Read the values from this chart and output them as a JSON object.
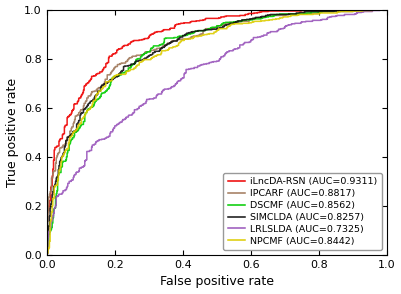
{
  "title": "",
  "xlabel": "False positive rate",
  "ylabel": "True positive rate",
  "methods": [
    {
      "label": "iLncDA-RSN (AUC=0.9311)",
      "color": "#EE0000",
      "auc": 0.9311,
      "seed": 42
    },
    {
      "label": "IPCARF (AUC=0.8817)",
      "color": "#A0785A",
      "auc": 0.8817,
      "seed": 7
    },
    {
      "label": "DSCMF (AUC=0.8562)",
      "color": "#00CC00",
      "auc": 0.8562,
      "seed": 13
    },
    {
      "label": "SIMCLDA (AUC=0.8257)",
      "color": "#111111",
      "auc": 0.8257,
      "seed": 21
    },
    {
      "label": "LRLSLDA (AUC=0.7325)",
      "color": "#9955BB",
      "auc": 0.7325,
      "seed": 3
    },
    {
      "label": "NPCMF (AUC=0.8442)",
      "color": "#DDCC00",
      "auc": 0.8442,
      "seed": 99
    }
  ],
  "xlim": [
    0,
    1
  ],
  "ylim": [
    0,
    1
  ],
  "xticks": [
    0.0,
    0.2,
    0.4,
    0.6,
    0.8,
    1.0
  ],
  "yticks": [
    0.0,
    0.2,
    0.4,
    0.6,
    0.8,
    1.0
  ],
  "legend_loc": "lower right",
  "background_color": "#FFFFFF",
  "linewidth": 1.1
}
